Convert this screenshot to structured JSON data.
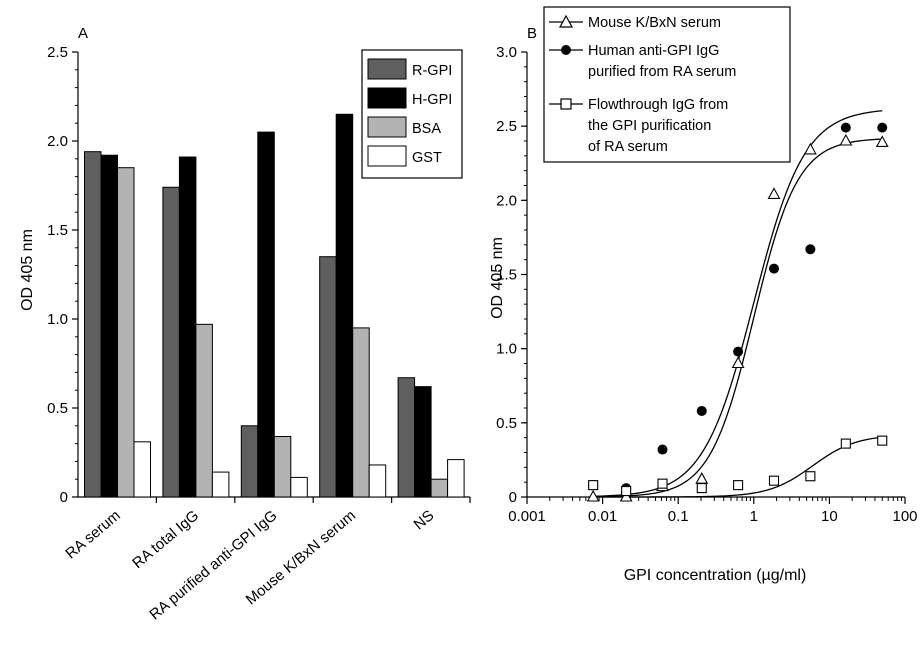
{
  "chart_data": [
    {
      "type": "bar",
      "panel_label": "A",
      "ylabel": "OD 405 nm",
      "ylim": [
        0,
        2.5
      ],
      "yticks": [
        "0",
        "0.5",
        "1.0",
        "1.5",
        "2.0",
        "2.5"
      ],
      "ytick_values": [
        0,
        0.5,
        1.0,
        1.5,
        2.0,
        2.5
      ],
      "categories": [
        "RA serum",
        "RA total IgG",
        "RA purified anti-GPI IgG",
        "Mouse K/BxN serum",
        "NS"
      ],
      "series": [
        {
          "name": "R-GPI",
          "color": "#5f5f5f",
          "values": [
            1.94,
            1.74,
            0.4,
            1.35,
            0.67
          ]
        },
        {
          "name": "H-GPI",
          "color": "#000000",
          "values": [
            1.92,
            1.91,
            2.05,
            2.15,
            0.62
          ]
        },
        {
          "name": "BSA",
          "color": "#b3b3b3",
          "values": [
            1.85,
            0.97,
            0.34,
            0.95,
            0.1
          ]
        },
        {
          "name": "GST",
          "color": "#ffffff",
          "values": [
            0.31,
            0.14,
            0.11,
            0.18,
            0.21
          ]
        }
      ],
      "legend_position": "top-right"
    },
    {
      "type": "scatter",
      "panel_label": "B",
      "xlabel": "GPI concentration (µg/ml)",
      "ylabel": "OD 405 nm",
      "xscale": "log",
      "xlim": [
        0.001,
        100
      ],
      "ylim": [
        0,
        3.0
      ],
      "xticks": [
        "0.001",
        "0.01",
        "0.1",
        "1",
        "10",
        "100"
      ],
      "xtick_values": [
        0.001,
        0.01,
        0.1,
        1,
        10,
        100
      ],
      "yticks": [
        "0",
        "0.5",
        "1.0",
        "1.5",
        "2.0",
        "2.5",
        "3.0"
      ],
      "ytick_values": [
        0,
        0.5,
        1.0,
        1.5,
        2.0,
        2.5,
        3.0
      ],
      "x": [
        0.0075,
        0.0205,
        0.062,
        0.205,
        0.62,
        1.85,
        5.6,
        16.5,
        50
      ],
      "series": [
        {
          "name": "Mouse K/BxN serum",
          "marker": "triangle",
          "values": [
            0.0,
            0.0,
            0.07,
            0.12,
            0.9,
            2.04,
            2.34,
            2.4,
            2.39
          ],
          "curve": {
            "bottom": 0.0,
            "top": 2.42,
            "ec50": 1.0,
            "hill": 1.5
          }
        },
        {
          "name": "Human anti-GPI IgG purified from RA serum",
          "marker": "filled-circle",
          "values": [
            0.08,
            0.06,
            0.32,
            0.58,
            0.98,
            1.54,
            1.67,
            2.49,
            2.49
          ],
          "curve": {
            "bottom": 0.0,
            "top": 2.62,
            "ec50": 1.0,
            "hill": 1.3
          }
        },
        {
          "name": "Flowthrough IgG from the GPI purification of RA serum",
          "marker": "open-square",
          "values": [
            0.08,
            0.04,
            0.09,
            0.06,
            0.08,
            0.11,
            0.14,
            0.36,
            0.38
          ],
          "curve": {
            "bottom": 0.0,
            "top": 0.42,
            "ec50": 6.0,
            "hill": 1.5
          }
        }
      ],
      "legend_entries": [
        [
          "Mouse K/BxN serum"
        ],
        [
          "Human anti-GPI IgG",
          "purified from RA serum"
        ],
        [
          "Flowthrough IgG from",
          "the GPI purification",
          "of RA serum"
        ]
      ],
      "legend_position": "top-left"
    }
  ]
}
